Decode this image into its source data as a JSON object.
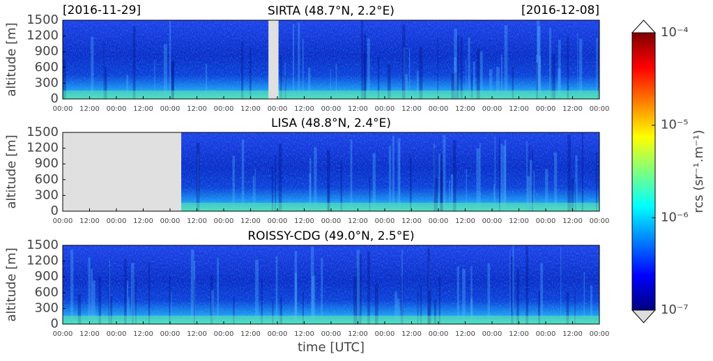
{
  "date_start": "[2016-11-29]",
  "date_end": "[2016-12-08]",
  "chart_data": [
    {
      "type": "heatmap",
      "title": "SIRTA (48.7°N, 2.2°E)",
      "y_label": "altitude [m]",
      "xlim": [
        0,
        240
      ],
      "xticks": [
        {
          "value": 0,
          "label": "00:00"
        },
        {
          "value": 12,
          "label": "12:00"
        },
        {
          "value": 24,
          "label": "00:00"
        },
        {
          "value": 36,
          "label": "12:00"
        },
        {
          "value": 48,
          "label": "00:00"
        },
        {
          "value": 60,
          "label": "12:00"
        },
        {
          "value": 72,
          "label": "00:00"
        },
        {
          "value": 84,
          "label": "12:00"
        },
        {
          "value": 96,
          "label": "00:00"
        },
        {
          "value": 108,
          "label": "12:00"
        },
        {
          "value": 120,
          "label": "00:00"
        },
        {
          "value": 132,
          "label": "12:00"
        },
        {
          "value": 144,
          "label": "00:00"
        },
        {
          "value": 156,
          "label": "12:00"
        },
        {
          "value": 168,
          "label": "00:00"
        },
        {
          "value": 180,
          "label": "12:00"
        },
        {
          "value": 192,
          "label": "00:00"
        },
        {
          "value": 204,
          "label": "12:00"
        },
        {
          "value": 216,
          "label": "00:00"
        },
        {
          "value": 228,
          "label": "12:00"
        },
        {
          "value": 240,
          "label": "00:00"
        }
      ],
      "ylim": [
        0,
        1500
      ],
      "yticks": [
        0,
        300,
        600,
        900,
        1200,
        1500
      ],
      "missing": [
        [
          92,
          96.5
        ]
      ]
    },
    {
      "type": "heatmap",
      "title": "LISA (48.8°N, 2.4°E)",
      "y_label": "altitude [m]",
      "xlim": [
        0,
        240
      ],
      "xticks": [
        {
          "value": 0,
          "label": "00:00"
        },
        {
          "value": 12,
          "label": "12:00"
        },
        {
          "value": 24,
          "label": "00:00"
        },
        {
          "value": 36,
          "label": "12:00"
        },
        {
          "value": 48,
          "label": "00:00"
        },
        {
          "value": 60,
          "label": "12:00"
        },
        {
          "value": 72,
          "label": "00:00"
        },
        {
          "value": 84,
          "label": "12:00"
        },
        {
          "value": 96,
          "label": "00:00"
        },
        {
          "value": 108,
          "label": "12:00"
        },
        {
          "value": 120,
          "label": "00:00"
        },
        {
          "value": 132,
          "label": "12:00"
        },
        {
          "value": 144,
          "label": "00:00"
        },
        {
          "value": 156,
          "label": "12:00"
        },
        {
          "value": 168,
          "label": "00:00"
        },
        {
          "value": 180,
          "label": "12:00"
        },
        {
          "value": 192,
          "label": "00:00"
        },
        {
          "value": 204,
          "label": "12:00"
        },
        {
          "value": 216,
          "label": "00:00"
        },
        {
          "value": 228,
          "label": "12:00"
        },
        {
          "value": 240,
          "label": "00:00"
        }
      ],
      "ylim": [
        0,
        1500
      ],
      "yticks": [
        0,
        300,
        600,
        900,
        1200,
        1500
      ],
      "missing": [
        [
          0,
          53
        ]
      ]
    },
    {
      "type": "heatmap",
      "title": "ROISSY-CDG (49.0°N, 2.5°E)",
      "y_label": "altitude [m]",
      "x_label": "time [UTC]",
      "xlim": [
        0,
        240
      ],
      "xticks": [
        {
          "value": 0,
          "label": "00:00"
        },
        {
          "value": 12,
          "label": "12:00"
        },
        {
          "value": 24,
          "label": "00:00"
        },
        {
          "value": 36,
          "label": "12:00"
        },
        {
          "value": 48,
          "label": "00:00"
        },
        {
          "value": 60,
          "label": "12:00"
        },
        {
          "value": 72,
          "label": "00:00"
        },
        {
          "value": 84,
          "label": "12:00"
        },
        {
          "value": 96,
          "label": "00:00"
        },
        {
          "value": 108,
          "label": "12:00"
        },
        {
          "value": 120,
          "label": "00:00"
        },
        {
          "value": 132,
          "label": "12:00"
        },
        {
          "value": 144,
          "label": "00:00"
        },
        {
          "value": 156,
          "label": "12:00"
        },
        {
          "value": 168,
          "label": "00:00"
        },
        {
          "value": 180,
          "label": "12:00"
        },
        {
          "value": 192,
          "label": "00:00"
        },
        {
          "value": 204,
          "label": "12:00"
        },
        {
          "value": 216,
          "label": "00:00"
        },
        {
          "value": 228,
          "label": "12:00"
        },
        {
          "value": 240,
          "label": "00:00"
        }
      ],
      "ylim": [
        0,
        1500
      ],
      "yticks": [
        0,
        300,
        600,
        900,
        1200,
        1500
      ],
      "missing": []
    }
  ],
  "colorbar": {
    "label": "rcs (sr⁻¹.m⁻¹)",
    "log_scale": true,
    "lim": [
      1e-07,
      0.0001
    ],
    "ticks": [
      {
        "value": 1e-07,
        "label": "10⁻⁷"
      },
      {
        "value": 1e-06,
        "label": "10⁻⁶"
      },
      {
        "value": 1e-05,
        "label": "10⁻⁵"
      },
      {
        "value": 0.0001,
        "label": "10⁻⁴"
      }
    ],
    "colormap": [
      "#00007f",
      "#0000ff",
      "#007fff",
      "#00ffff",
      "#7fff7f",
      "#ffff00",
      "#ff7f00",
      "#ff0000",
      "#7f0000"
    ],
    "extend_max_color": "#ffffff",
    "extend_min_color": "#dddddd"
  }
}
